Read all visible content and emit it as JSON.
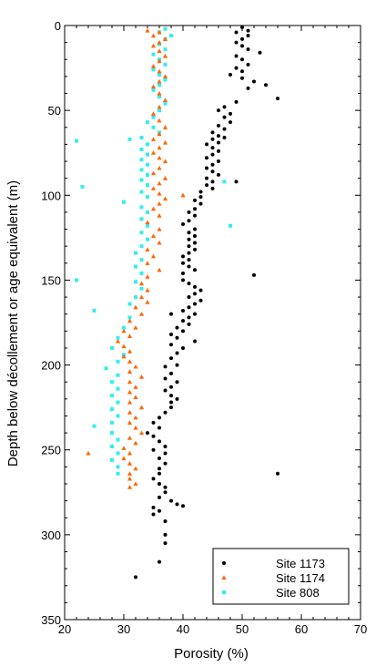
{
  "chart_data": {
    "type": "scatter",
    "xlabel": "Porosity (%)",
    "ylabel": "Depth below décollement or age equivalent  (m)",
    "xlim": [
      20,
      70
    ],
    "ylim": [
      0,
      350
    ],
    "y_inverted": true,
    "x_ticks": [
      20,
      30,
      40,
      50,
      60,
      70
    ],
    "y_ticks": [
      0,
      50,
      100,
      150,
      200,
      250,
      300,
      350
    ],
    "grid": false,
    "legend_position": "bottom-right",
    "series": [
      {
        "name": "Site 1173",
        "color": "#000000",
        "marker": "circle",
        "points": [
          [
            50,
            1
          ],
          [
            51,
            3
          ],
          [
            49,
            4
          ],
          [
            51,
            6
          ],
          [
            50,
            8
          ],
          [
            49,
            10
          ],
          [
            50,
            12
          ],
          [
            51,
            14
          ],
          [
            53,
            16
          ],
          [
            49,
            18
          ],
          [
            50,
            20
          ],
          [
            51,
            23
          ],
          [
            49,
            25
          ],
          [
            50,
            27
          ],
          [
            48,
            29
          ],
          [
            50,
            31
          ],
          [
            52,
            33
          ],
          [
            54,
            35
          ],
          [
            51,
            37
          ],
          [
            56,
            43
          ],
          [
            49,
            45
          ],
          [
            47,
            48
          ],
          [
            46,
            50
          ],
          [
            48,
            52
          ],
          [
            47,
            54
          ],
          [
            48,
            57
          ],
          [
            46,
            59
          ],
          [
            47,
            61
          ],
          [
            45,
            63
          ],
          [
            46,
            65
          ],
          [
            47,
            66
          ],
          [
            45,
            67
          ],
          [
            46,
            69
          ],
          [
            44,
            70
          ],
          [
            45,
            72
          ],
          [
            46,
            74
          ],
          [
            45,
            76
          ],
          [
            44,
            78
          ],
          [
            46,
            80
          ],
          [
            45,
            82
          ],
          [
            44,
            84
          ],
          [
            45,
            86
          ],
          [
            46,
            88
          ],
          [
            44,
            90
          ],
          [
            45,
            92
          ],
          [
            49,
            92
          ],
          [
            44,
            94
          ],
          [
            45,
            96
          ],
          [
            43,
            98
          ],
          [
            43,
            101
          ],
          [
            42,
            103
          ],
          [
            43,
            105
          ],
          [
            42,
            108
          ],
          [
            41,
            110
          ],
          [
            42,
            112
          ],
          [
            41,
            115
          ],
          [
            40,
            117
          ],
          [
            42,
            120
          ],
          [
            41,
            122
          ],
          [
            42,
            124
          ],
          [
            41,
            126
          ],
          [
            42,
            128
          ],
          [
            41,
            130
          ],
          [
            42,
            132
          ],
          [
            41,
            134
          ],
          [
            40,
            136
          ],
          [
            41,
            138
          ],
          [
            40,
            140
          ],
          [
            41,
            142
          ],
          [
            42,
            144
          ],
          [
            40,
            146
          ],
          [
            52,
            147
          ],
          [
            40,
            150
          ],
          [
            41,
            152
          ],
          [
            42,
            154
          ],
          [
            43,
            156
          ],
          [
            42,
            158
          ],
          [
            41,
            160
          ],
          [
            43,
            162
          ],
          [
            42,
            164
          ],
          [
            41,
            166
          ],
          [
            40,
            168
          ],
          [
            42,
            170
          ],
          [
            38,
            170
          ],
          [
            41,
            172
          ],
          [
            40,
            174
          ],
          [
            41,
            176
          ],
          [
            39,
            178
          ],
          [
            40,
            180
          ],
          [
            38,
            182
          ],
          [
            39,
            184
          ],
          [
            42,
            186
          ],
          [
            38,
            188
          ],
          [
            40,
            190
          ],
          [
            39,
            193
          ],
          [
            38,
            196
          ],
          [
            39,
            200
          ],
          [
            37,
            201
          ],
          [
            38,
            205
          ],
          [
            37,
            208
          ],
          [
            39,
            210
          ],
          [
            38,
            213
          ],
          [
            37,
            215
          ],
          [
            38,
            218
          ],
          [
            39,
            220
          ],
          [
            38,
            222
          ],
          [
            38,
            225
          ],
          [
            37,
            228
          ],
          [
            36,
            231
          ],
          [
            35,
            234
          ],
          [
            36,
            237
          ],
          [
            34,
            240
          ],
          [
            35,
            242
          ],
          [
            36,
            245
          ],
          [
            37,
            248
          ],
          [
            35,
            250
          ],
          [
            37,
            252
          ],
          [
            36,
            255
          ],
          [
            37,
            258
          ],
          [
            36,
            261
          ],
          [
            36,
            264
          ],
          [
            56,
            264
          ],
          [
            35,
            267
          ],
          [
            36,
            270
          ],
          [
            37,
            272
          ],
          [
            37,
            275
          ],
          [
            36,
            278
          ],
          [
            38,
            280
          ],
          [
            39,
            282
          ],
          [
            40,
            283
          ],
          [
            35,
            284
          ],
          [
            36,
            286
          ],
          [
            35,
            288
          ],
          [
            37,
            292
          ],
          [
            37,
            300
          ],
          [
            37,
            305
          ],
          [
            36,
            316
          ],
          [
            32,
            325
          ]
        ]
      },
      {
        "name": "Site 1174",
        "color": "#ff6600",
        "marker": "triangle",
        "points": [
          [
            34,
            3
          ],
          [
            36,
            4
          ],
          [
            35,
            6
          ],
          [
            37,
            8
          ],
          [
            36,
            10
          ],
          [
            35,
            12
          ],
          [
            36,
            15
          ],
          [
            37,
            18
          ],
          [
            36,
            21
          ],
          [
            35,
            24
          ],
          [
            36,
            27
          ],
          [
            37,
            30
          ],
          [
            36,
            33
          ],
          [
            35,
            36
          ],
          [
            36,
            40
          ],
          [
            37,
            44
          ],
          [
            36,
            48
          ],
          [
            35,
            52
          ],
          [
            36,
            56
          ],
          [
            37,
            60
          ],
          [
            36,
            64
          ],
          [
            35,
            67
          ],
          [
            37,
            69
          ],
          [
            36,
            72
          ],
          [
            35,
            75
          ],
          [
            36,
            78
          ],
          [
            37,
            80
          ],
          [
            36,
            84
          ],
          [
            35,
            87
          ],
          [
            37,
            90
          ],
          [
            36,
            93
          ],
          [
            35,
            96
          ],
          [
            36,
            99
          ],
          [
            40,
            100
          ],
          [
            37,
            102
          ],
          [
            36,
            105
          ],
          [
            35,
            108
          ],
          [
            36,
            112
          ],
          [
            34,
            116
          ],
          [
            36,
            120
          ],
          [
            35,
            124
          ],
          [
            36,
            128
          ],
          [
            34,
            132
          ],
          [
            35,
            136
          ],
          [
            34,
            140
          ],
          [
            36,
            144
          ],
          [
            34,
            148
          ],
          [
            33,
            152
          ],
          [
            34,
            156
          ],
          [
            33,
            160
          ],
          [
            34,
            163
          ],
          [
            32,
            166
          ],
          [
            33,
            170
          ],
          [
            31,
            174
          ],
          [
            32,
            178
          ],
          [
            30,
            180
          ],
          [
            31,
            183
          ],
          [
            29,
            186
          ],
          [
            30,
            189
          ],
          [
            31,
            192
          ],
          [
            30,
            195
          ],
          [
            31,
            198
          ],
          [
            32,
            201
          ],
          [
            31,
            204
          ],
          [
            33,
            207
          ],
          [
            31,
            210
          ],
          [
            32,
            213
          ],
          [
            31,
            216
          ],
          [
            32,
            219
          ],
          [
            31,
            222
          ],
          [
            33,
            225
          ],
          [
            31,
            228
          ],
          [
            32,
            231
          ],
          [
            31,
            234
          ],
          [
            32,
            237
          ],
          [
            33,
            240
          ],
          [
            31,
            243
          ],
          [
            32,
            246
          ],
          [
            30,
            249
          ],
          [
            31,
            252
          ],
          [
            24,
            252
          ],
          [
            30,
            255
          ],
          [
            31,
            258
          ],
          [
            32,
            261
          ],
          [
            31,
            264
          ],
          [
            31,
            267
          ],
          [
            32,
            270
          ],
          [
            31,
            272
          ]
        ]
      },
      {
        "name": "Site 808",
        "color": "#33eeee",
        "marker": "square",
        "points": [
          [
            37,
            2
          ],
          [
            36,
            4
          ],
          [
            38,
            6
          ],
          [
            37,
            8
          ],
          [
            36,
            11
          ],
          [
            37,
            14
          ],
          [
            35,
            17
          ],
          [
            36,
            20
          ],
          [
            37,
            23
          ],
          [
            35,
            26
          ],
          [
            36,
            29
          ],
          [
            37,
            32
          ],
          [
            36,
            35
          ],
          [
            35,
            38
          ],
          [
            36,
            42
          ],
          [
            37,
            46
          ],
          [
            36,
            50
          ],
          [
            35,
            54
          ],
          [
            34,
            57
          ],
          [
            35,
            60
          ],
          [
            36,
            63
          ],
          [
            33,
            66
          ],
          [
            31,
            67
          ],
          [
            22,
            68
          ],
          [
            34,
            70
          ],
          [
            33,
            73
          ],
          [
            34,
            76
          ],
          [
            33,
            79
          ],
          [
            34,
            82
          ],
          [
            33,
            85
          ],
          [
            34,
            88
          ],
          [
            33,
            91
          ],
          [
            47,
            92
          ],
          [
            34,
            94
          ],
          [
            23,
            95
          ],
          [
            33,
            98
          ],
          [
            34,
            101
          ],
          [
            30,
            104
          ],
          [
            33,
            107
          ],
          [
            34,
            110
          ],
          [
            33,
            114
          ],
          [
            34,
            118
          ],
          [
            48,
            118
          ],
          [
            33,
            122
          ],
          [
            34,
            126
          ],
          [
            33,
            130
          ],
          [
            32,
            134
          ],
          [
            33,
            138
          ],
          [
            32,
            142
          ],
          [
            33,
            146
          ],
          [
            22,
            150
          ],
          [
            32,
            151
          ],
          [
            33,
            155
          ],
          [
            32,
            160
          ],
          [
            31,
            164
          ],
          [
            25,
            168
          ],
          [
            31,
            172
          ],
          [
            30,
            178
          ],
          [
            29,
            184
          ],
          [
            28,
            190
          ],
          [
            30,
            194
          ],
          [
            29,
            198
          ],
          [
            27,
            202
          ],
          [
            29,
            206
          ],
          [
            28,
            210
          ],
          [
            29,
            214
          ],
          [
            28,
            218
          ],
          [
            29,
            222
          ],
          [
            28,
            226
          ],
          [
            29,
            230
          ],
          [
            28,
            234
          ],
          [
            25,
            236
          ],
          [
            28,
            240
          ],
          [
            29,
            244
          ],
          [
            28,
            248
          ],
          [
            29,
            252
          ],
          [
            28,
            256
          ],
          [
            29,
            260
          ],
          [
            29,
            264
          ]
        ]
      }
    ]
  }
}
